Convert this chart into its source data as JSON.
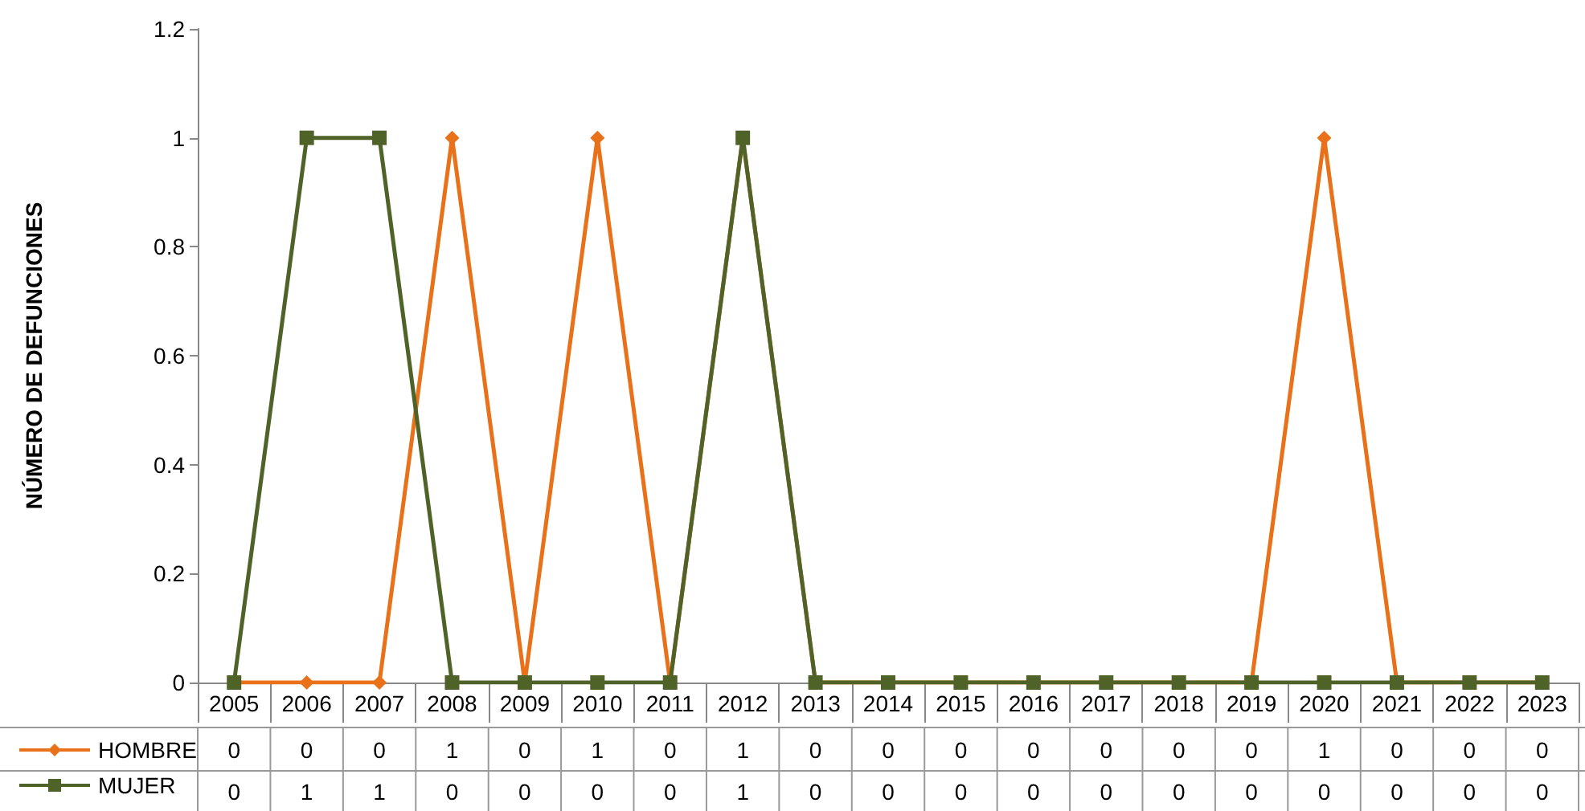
{
  "chart_data": {
    "type": "line",
    "ylabel": "NÚMERO DE DEFUNCIONES",
    "categories": [
      "2005",
      "2006",
      "2007",
      "2008",
      "2009",
      "2010",
      "2011",
      "2012",
      "2013",
      "2014",
      "2015",
      "2016",
      "2017",
      "2018",
      "2019",
      "2020",
      "2021",
      "2022",
      "2023"
    ],
    "series": [
      {
        "name": "HOMBRE",
        "color": "#e8711a",
        "marker": "diamond",
        "values": [
          0,
          0,
          0,
          1,
          0,
          1,
          0,
          1,
          0,
          0,
          0,
          0,
          0,
          0,
          0,
          1,
          0,
          0,
          0
        ]
      },
      {
        "name": "MUJER",
        "color": "#4f6228",
        "marker": "square",
        "values": [
          0,
          1,
          1,
          0,
          0,
          0,
          0,
          1,
          0,
          0,
          0,
          0,
          0,
          0,
          0,
          0,
          0,
          0,
          0
        ]
      }
    ],
    "ylim": [
      0,
      1.2
    ],
    "yticks": [
      0,
      0.2,
      0.4,
      0.6,
      0.8,
      1,
      1.2
    ],
    "grid": false,
    "legend": "bottom left",
    "data_labels": true
  }
}
